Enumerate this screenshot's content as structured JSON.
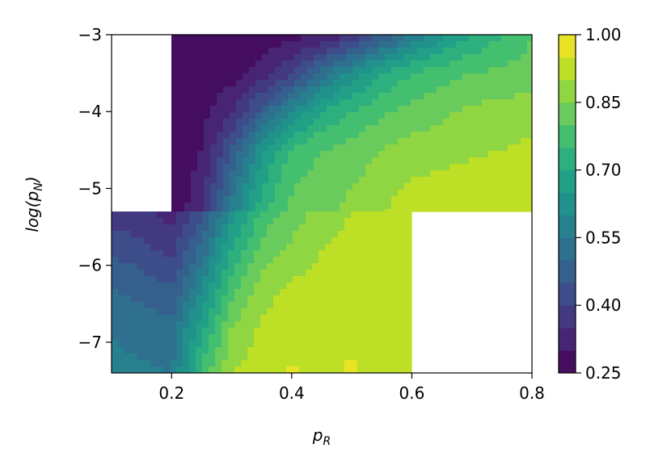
{
  "chart_data": {
    "type": "heatmap",
    "subtype": "filled-contour",
    "title": "",
    "xlabel": "p_R",
    "ylabel": "log(p_N)",
    "xlim": [
      0.1,
      0.8
    ],
    "ylim": [
      -7.4,
      -3.0
    ],
    "x_ticks": [
      0.2,
      0.4,
      0.6,
      0.8
    ],
    "x_tick_labels": [
      "0.2",
      "0.4",
      "0.6",
      "0.8"
    ],
    "y_ticks": [
      -3,
      -4,
      -5,
      -6,
      -7
    ],
    "y_tick_labels": [
      "−3",
      "−4",
      "−5",
      "−6",
      "−7"
    ],
    "colormap": "viridis",
    "colorbar": {
      "min": 0.25,
      "max": 1.0,
      "step": 0.05,
      "ticks": [
        0.25,
        0.4,
        0.55,
        0.7,
        0.85,
        1.0
      ],
      "tick_labels": [
        "0.25",
        "0.40",
        "0.55",
        "0.70",
        "0.85",
        "1.00"
      ]
    },
    "upper_region": {
      "x": [
        0.2,
        0.25,
        0.3,
        0.35,
        0.4,
        0.45,
        0.5,
        0.55,
        0.6,
        0.65,
        0.7,
        0.75,
        0.8
      ],
      "y": [
        -3.0,
        -3.5,
        -4.0,
        -4.5,
        -5.0,
        -5.3
      ],
      "z": [
        [
          0.27,
          0.27,
          0.27,
          0.27,
          0.28,
          0.3,
          0.36,
          0.45,
          0.55,
          0.63,
          0.7,
          0.75,
          0.8
        ],
        [
          0.27,
          0.27,
          0.28,
          0.32,
          0.4,
          0.52,
          0.62,
          0.7,
          0.75,
          0.78,
          0.8,
          0.81,
          0.82
        ],
        [
          0.27,
          0.28,
          0.34,
          0.47,
          0.6,
          0.7,
          0.75,
          0.79,
          0.82,
          0.84,
          0.86,
          0.87,
          0.88
        ],
        [
          0.27,
          0.3,
          0.45,
          0.64,
          0.76,
          0.8,
          0.82,
          0.85,
          0.87,
          0.88,
          0.89,
          0.9,
          0.91
        ],
        [
          0.27,
          0.32,
          0.53,
          0.7,
          0.8,
          0.83,
          0.85,
          0.88,
          0.91,
          0.92,
          0.93,
          0.93,
          0.93
        ],
        [
          0.27,
          0.33,
          0.56,
          0.73,
          0.81,
          0.84,
          0.86,
          0.9,
          0.92,
          0.93,
          0.93,
          0.93,
          0.93
        ]
      ]
    },
    "lower_region": {
      "x": [
        0.1,
        0.15,
        0.2,
        0.25,
        0.3,
        0.35,
        0.4,
        0.45,
        0.5,
        0.55,
        0.6
      ],
      "y": [
        -5.3,
        -5.8,
        -6.3,
        -6.8,
        -7.4
      ],
      "z": [
        [
          0.37,
          0.36,
          0.33,
          0.44,
          0.62,
          0.76,
          0.83,
          0.86,
          0.9,
          0.91,
          0.92
        ],
        [
          0.44,
          0.42,
          0.38,
          0.52,
          0.7,
          0.82,
          0.86,
          0.9,
          0.92,
          0.92,
          0.93
        ],
        [
          0.5,
          0.48,
          0.45,
          0.6,
          0.78,
          0.88,
          0.91,
          0.92,
          0.92,
          0.93,
          0.93
        ],
        [
          0.54,
          0.53,
          0.52,
          0.68,
          0.85,
          0.91,
          0.92,
          0.93,
          0.93,
          0.93,
          0.93
        ],
        [
          0.57,
          0.56,
          0.55,
          0.76,
          0.9,
          0.93,
          0.96,
          0.93,
          0.96,
          0.93,
          0.93
        ]
      ]
    },
    "missing_regions": [
      {
        "x": [
          0.1,
          0.2
        ],
        "y": [
          -5.3,
          -3.0
        ]
      },
      {
        "x": [
          0.6,
          0.8
        ],
        "y": [
          -7.4,
          -5.3
        ]
      }
    ]
  }
}
